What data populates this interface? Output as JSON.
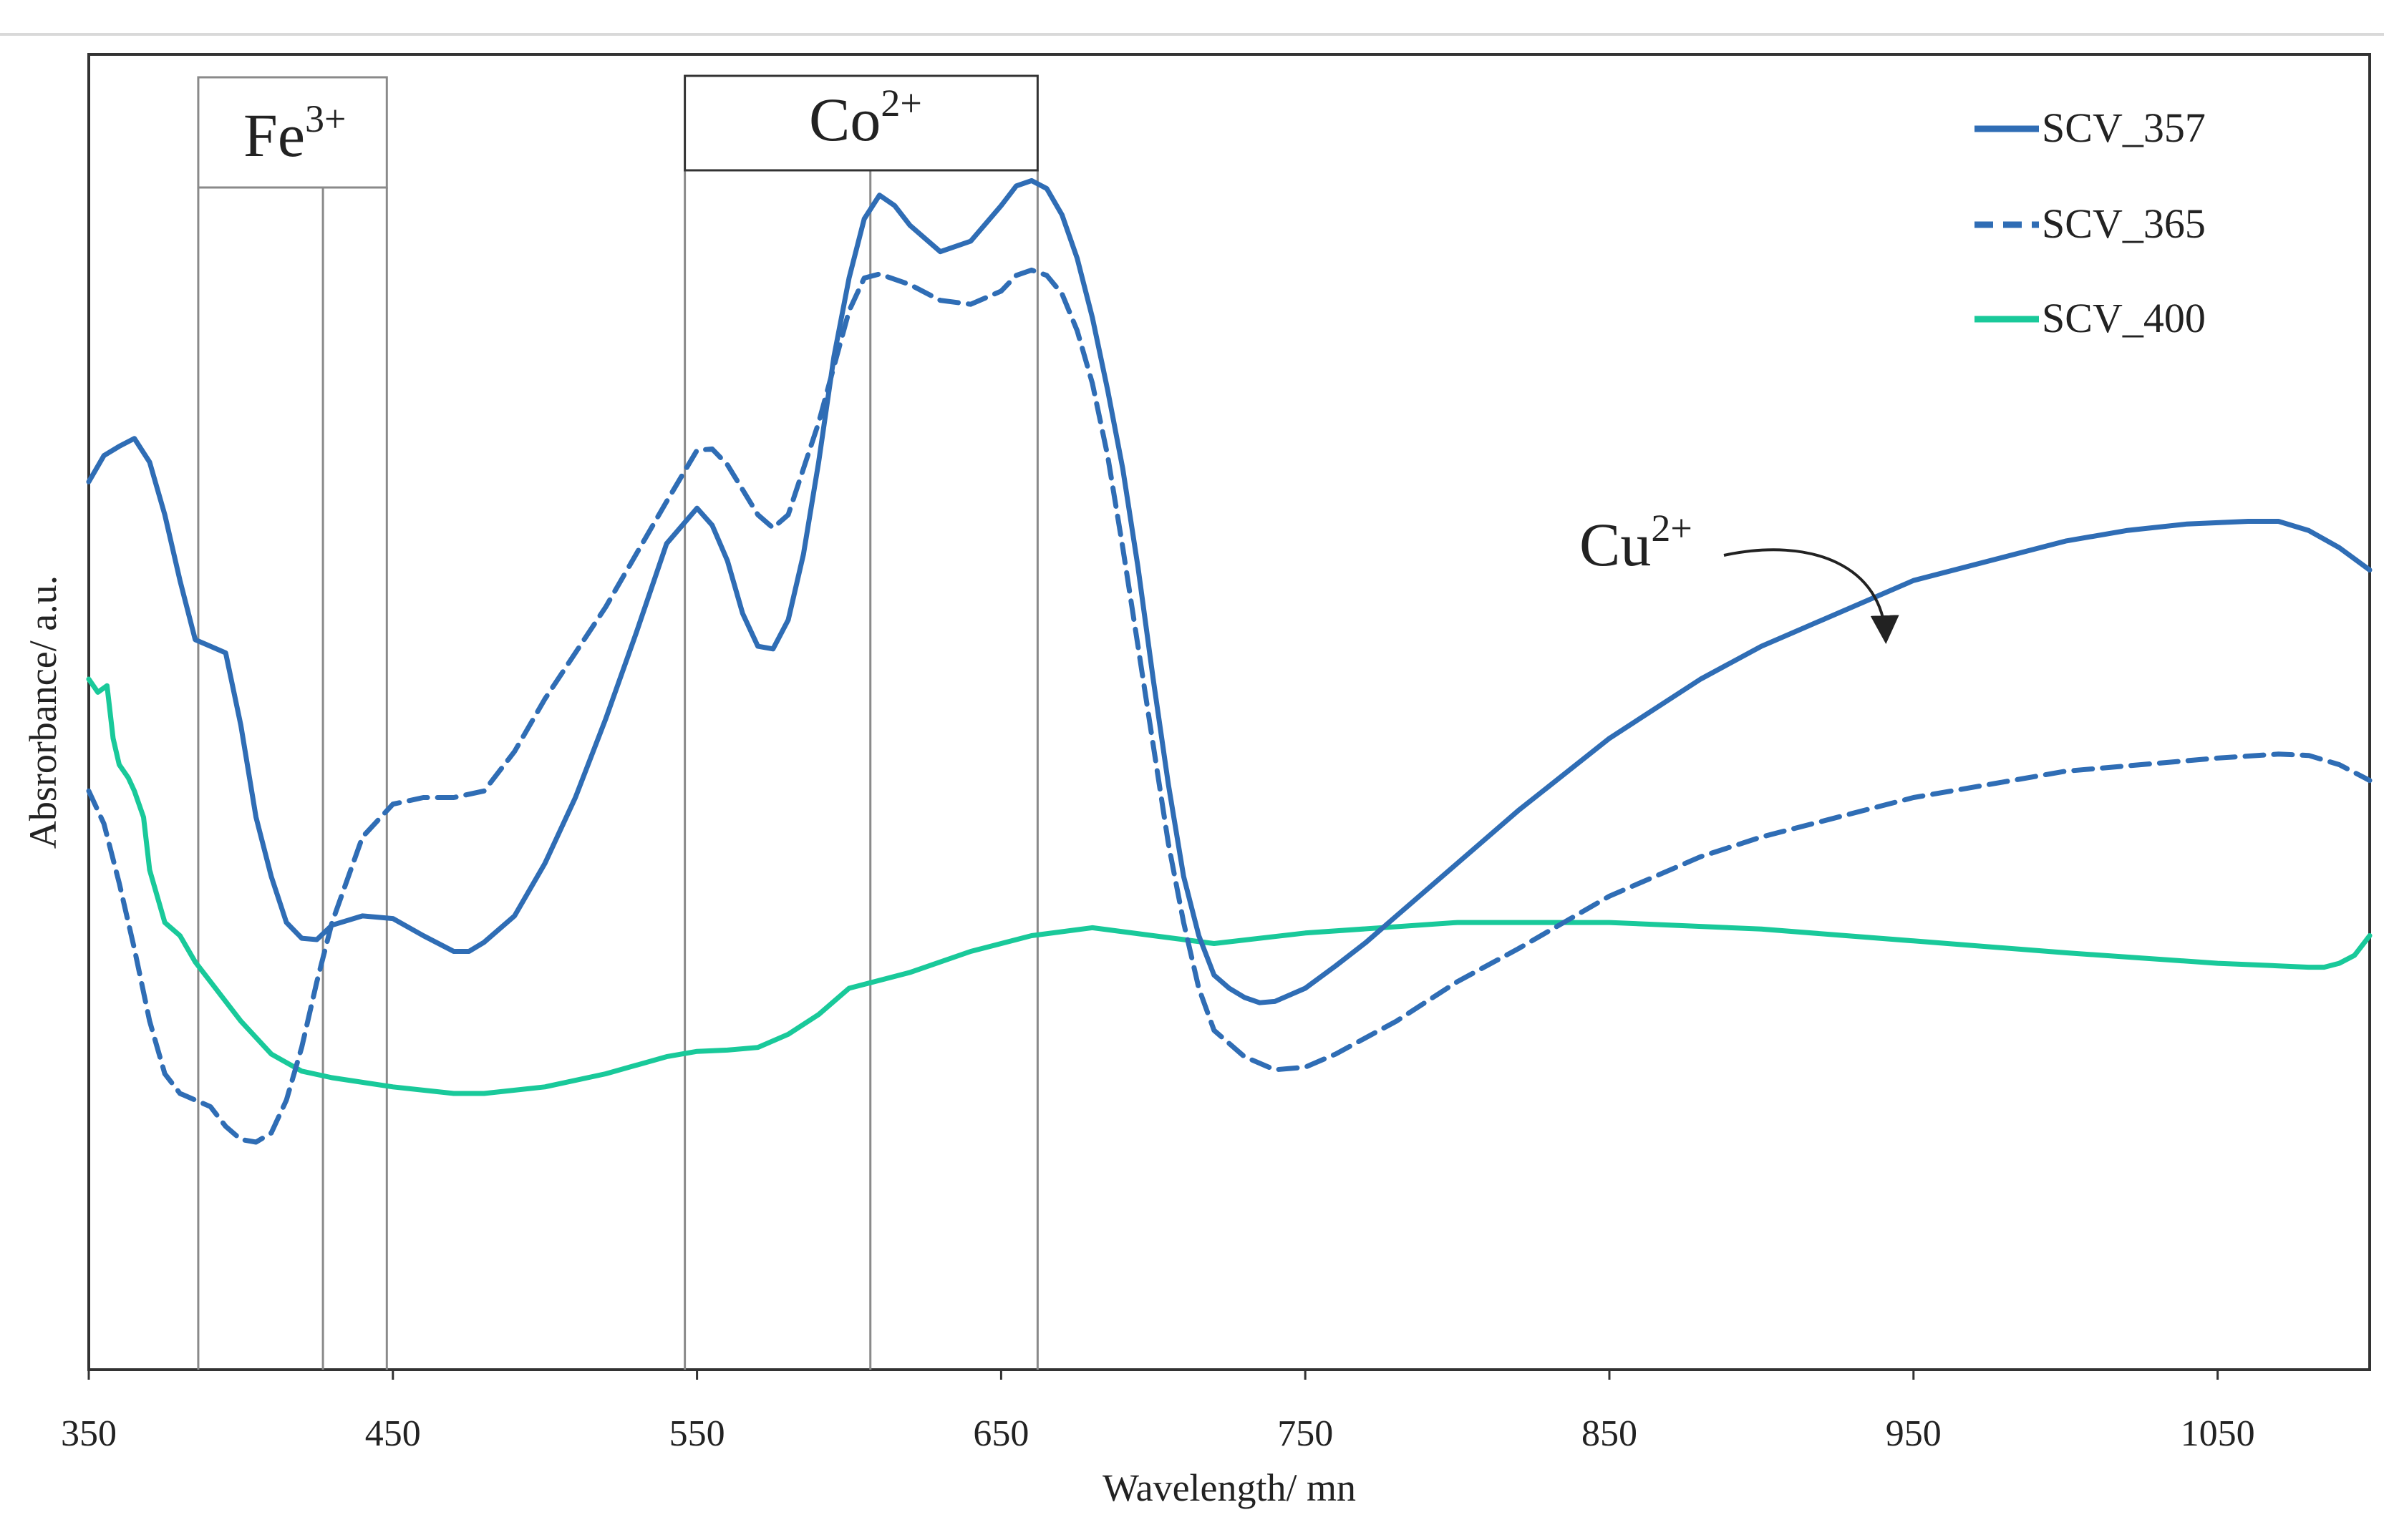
{
  "chart_data": {
    "type": "line",
    "title": "",
    "xlabel": "Wavelength/ mn",
    "ylabel": "Absrorbance/ a.u.",
    "xlim": [
      350,
      1100
    ],
    "ylim": [
      0,
      1
    ],
    "grid": false,
    "x_ticks": [
      "350",
      "450",
      "550",
      "650",
      "750",
      "850",
      "950",
      "1050"
    ],
    "legend_position": "top-right",
    "colors": {
      "blue": "#2f6db5",
      "green": "#19c99a",
      "ref_line": "#8a8a8a",
      "axis": "#333333"
    },
    "series": [
      {
        "name": "SCV_357",
        "style": "solid",
        "color": "#2f6db5",
        "x": [
          350,
          355,
          360,
          365,
          370,
          375,
          380,
          385,
          390,
          395,
          400,
          405,
          410,
          415,
          420,
          425,
          430,
          440,
          450,
          460,
          470,
          475,
          480,
          490,
          500,
          510,
          520,
          530,
          540,
          550,
          555,
          560,
          565,
          570,
          575,
          580,
          585,
          590,
          595,
          600,
          605,
          610,
          615,
          620,
          630,
          640,
          650,
          655,
          660,
          665,
          670,
          675,
          680,
          685,
          690,
          695,
          700,
          705,
          710,
          715,
          720,
          725,
          730,
          735,
          740,
          750,
          760,
          770,
          780,
          800,
          820,
          850,
          880,
          900,
          950,
          1000,
          1020,
          1040,
          1060,
          1070,
          1080,
          1090,
          1100
        ],
        "y": [
          0.675,
          0.695,
          0.702,
          0.708,
          0.69,
          0.65,
          0.6,
          0.555,
          0.55,
          0.545,
          0.49,
          0.42,
          0.375,
          0.34,
          0.328,
          0.327,
          0.338,
          0.345,
          0.343,
          0.33,
          0.318,
          0.318,
          0.325,
          0.345,
          0.385,
          0.435,
          0.495,
          0.56,
          0.628,
          0.655,
          0.642,
          0.615,
          0.575,
          0.55,
          0.548,
          0.57,
          0.62,
          0.69,
          0.77,
          0.83,
          0.875,
          0.893,
          0.885,
          0.87,
          0.85,
          0.858,
          0.885,
          0.9,
          0.904,
          0.898,
          0.878,
          0.845,
          0.8,
          0.745,
          0.685,
          0.61,
          0.525,
          0.445,
          0.375,
          0.33,
          0.3,
          0.29,
          0.283,
          0.279,
          0.28,
          0.29,
          0.307,
          0.325,
          0.345,
          0.385,
          0.425,
          0.48,
          0.525,
          0.55,
          0.6,
          0.63,
          0.638,
          0.643,
          0.645,
          0.645,
          0.638,
          0.625,
          0.608
        ]
      },
      {
        "name": "SCV_365",
        "style": "dashed",
        "color": "#2f6db5",
        "x": [
          350,
          355,
          360,
          365,
          370,
          375,
          380,
          385,
          390,
          395,
          400,
          405,
          410,
          415,
          420,
          425,
          430,
          440,
          450,
          460,
          470,
          480,
          490,
          500,
          510,
          520,
          530,
          540,
          550,
          555,
          560,
          570,
          575,
          580,
          590,
          600,
          605,
          610,
          620,
          630,
          640,
          650,
          655,
          660,
          665,
          670,
          675,
          680,
          685,
          690,
          695,
          700,
          705,
          710,
          715,
          720,
          730,
          740,
          750,
          760,
          780,
          800,
          820,
          850,
          880,
          900,
          950,
          1000,
          1050,
          1070,
          1080,
          1090,
          1100
        ],
        "y": [
          0.44,
          0.415,
          0.37,
          0.32,
          0.265,
          0.225,
          0.21,
          0.205,
          0.2,
          0.185,
          0.175,
          0.173,
          0.18,
          0.205,
          0.245,
          0.295,
          0.34,
          0.405,
          0.43,
          0.435,
          0.435,
          0.44,
          0.47,
          0.51,
          0.545,
          0.58,
          0.62,
          0.66,
          0.699,
          0.7,
          0.688,
          0.65,
          0.64,
          0.65,
          0.72,
          0.805,
          0.83,
          0.833,
          0.825,
          0.813,
          0.81,
          0.82,
          0.832,
          0.836,
          0.832,
          0.818,
          0.79,
          0.75,
          0.695,
          0.625,
          0.55,
          0.475,
          0.4,
          0.34,
          0.29,
          0.258,
          0.238,
          0.228,
          0.23,
          0.24,
          0.265,
          0.295,
          0.32,
          0.36,
          0.39,
          0.405,
          0.435,
          0.455,
          0.465,
          0.468,
          0.467,
          0.46,
          0.448
        ]
      },
      {
        "name": "SCV_400",
        "style": "solid",
        "color": "#19c99a",
        "x": [
          350,
          353,
          356,
          358,
          360,
          363,
          365,
          368,
          370,
          375,
          380,
          385,
          390,
          400,
          410,
          420,
          430,
          450,
          470,
          480,
          500,
          520,
          540,
          550,
          560,
          570,
          580,
          590,
          600,
          620,
          640,
          660,
          680,
          700,
          720,
          750,
          800,
          850,
          900,
          950,
          1000,
          1050,
          1070,
          1080,
          1085,
          1090,
          1095,
          1100
        ],
        "y": [
          0.525,
          0.515,
          0.52,
          0.48,
          0.46,
          0.45,
          0.44,
          0.42,
          0.38,
          0.34,
          0.33,
          0.31,
          0.295,
          0.265,
          0.24,
          0.227,
          0.222,
          0.215,
          0.21,
          0.21,
          0.215,
          0.225,
          0.238,
          0.242,
          0.243,
          0.245,
          0.255,
          0.27,
          0.29,
          0.302,
          0.318,
          0.33,
          0.336,
          0.33,
          0.324,
          0.332,
          0.34,
          0.34,
          0.335,
          0.326,
          0.317,
          0.309,
          0.307,
          0.306,
          0.306,
          0.309,
          0.315,
          0.33
        ]
      }
    ],
    "reference_lines": [
      {
        "x": 386,
        "group": "Fe3+"
      },
      {
        "x": 427,
        "group": "Fe3+"
      },
      {
        "x": 448,
        "group": "Fe3+"
      },
      {
        "x": 546,
        "group": "Co2+"
      },
      {
        "x": 607,
        "group": "Co2+"
      },
      {
        "x": 662,
        "group": "Co2+"
      }
    ],
    "annotations": [
      {
        "base": "Fe",
        "sup": "3+",
        "x_from": 386,
        "x_to": 448,
        "boxed": true
      },
      {
        "base": "Co",
        "sup": "2+",
        "x_from": 546,
        "x_to": 662,
        "boxed": true
      },
      {
        "base": "Cu",
        "sup": "2+",
        "arrow_to_x": 940,
        "boxed": false
      }
    ]
  }
}
